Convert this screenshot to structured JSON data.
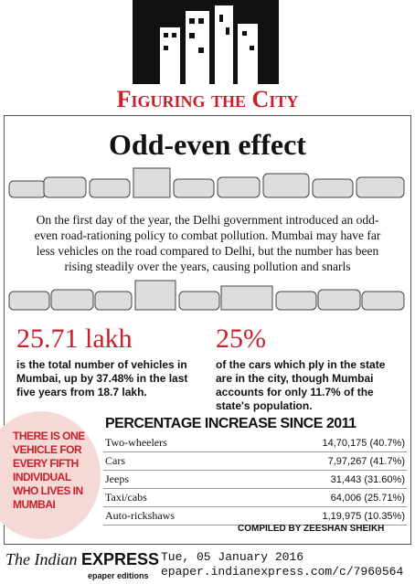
{
  "header": {
    "title": "Figuring the City"
  },
  "headline": "Odd-even effect",
  "intro": "On the first day of the year, the Delhi government introduced an odd-even road-rationing policy to combat pollution. Mumbai may have far less vehicles on the road compared to Delhi, but the number has been rising steadily over the years, causing pollution and snarls",
  "stats": [
    {
      "figure": "25.71 lakh",
      "text": "is the total number of vehicles in Mumbai, up by 37.48% in the last five years from 18.7 lakh."
    },
    {
      "figure": "25%",
      "text": "of the cars which ply in the state are in the city, though Mumbai accounts for only 11.7% of the state's population."
    }
  ],
  "sidebar": "THERE IS ONE VEHICLE FOR EVERY FIFTH INDIVIDUAL WHO LIVES IN MUMBAI",
  "table": {
    "title": "PERCENTAGE INCREASE SINCE 2011",
    "rows": [
      [
        "Two-wheelers",
        "14,70,175 (40.7%)"
      ],
      [
        "Cars",
        "7,97,267 (41.7%)"
      ],
      [
        "Jeeps",
        "31,443 (31.60%)"
      ],
      [
        "Taxi/cabs",
        "64,006 (25.71%)"
      ],
      [
        "Auto-rickshaws",
        "1,19,975 (10.35%)"
      ]
    ]
  },
  "credit": "COMPILED BY ZEESHAN SHEIKH",
  "footer": {
    "brand_a": "The Indian",
    "brand_b": "EXPRESS",
    "edition": "epaper editions",
    "date": "Tue, 05 January 2016",
    "url": "epaper.indianexpress.com/c/7960564"
  }
}
